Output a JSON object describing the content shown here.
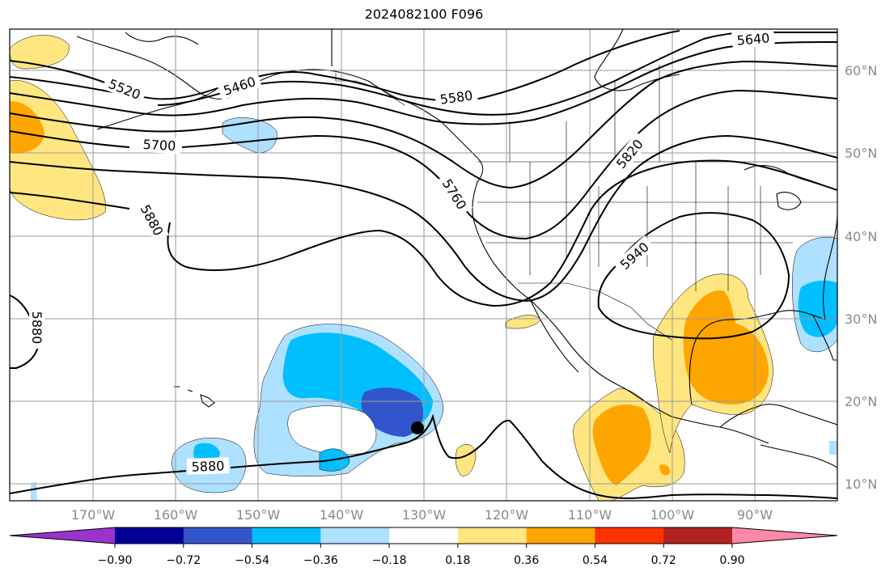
{
  "title": "2024082100 F096",
  "lon_labels": [
    "170°W",
    "160°W",
    "150°W",
    "140°W",
    "130°W",
    "120°W",
    "110°W",
    "100°W",
    "90°W"
  ],
  "lat_labels": [
    "60°N",
    "50°N",
    "40°N",
    "30°N",
    "20°N",
    "10°N"
  ],
  "contour_labels": {
    "c5520": "5520",
    "c5460": "5460",
    "c5580": "5580",
    "c5640": "5640",
    "c5700": "5700",
    "c5760": "5760",
    "c5820": "5820",
    "c5880a": "5880",
    "c5880b": "5880",
    "c5880c": "5880",
    "c5940": "5940"
  },
  "colorbar": {
    "colors": [
      "#9933cc",
      "#000099",
      "#3355cc",
      "#00bfff",
      "#aee0ff",
      "#ffffff",
      "#ffe680",
      "#ffa500",
      "#ff3300",
      "#b22222",
      "#ff88aa"
    ],
    "ticks": [
      "−0.90",
      "−0.72",
      "−0.54",
      "−0.36",
      "−0.18",
      "0.18",
      "0.36",
      "0.54",
      "0.72",
      "0.90"
    ]
  }
}
